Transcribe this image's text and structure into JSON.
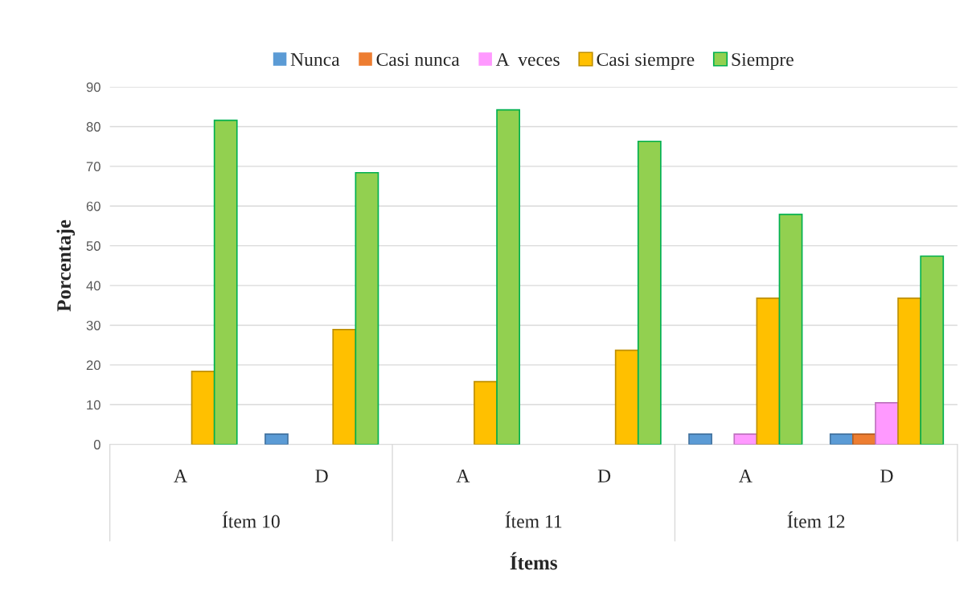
{
  "chart_data": {
    "type": "bar",
    "xlabel": "Ítems",
    "ylabel": "Porcentaje",
    "categories": [
      "A",
      "D",
      "A",
      "D",
      "A",
      "D"
    ],
    "annotations": [
      "Ítem 10",
      "Ítem 11",
      "Ítem 12"
    ],
    "series": [
      {
        "name": "Nunca",
        "color": "#5b9bd5",
        "values": [
          0,
          2.6,
          0,
          0,
          2.6,
          2.6
        ]
      },
      {
        "name": "Casi nunca",
        "color": "#ed7d31",
        "values": [
          0,
          0,
          0,
          0,
          0,
          2.6
        ]
      },
      {
        "name": "A  veces",
        "color": "#ff99ff",
        "values": [
          0,
          0,
          0,
          0,
          2.6,
          10.5
        ]
      },
      {
        "name": "Casi siempre",
        "color": "#ffc000",
        "values": [
          18.4,
          28.9,
          15.8,
          23.7,
          36.8,
          36.8
        ]
      },
      {
        "name": "Siempre",
        "color": "#92d050",
        "values": [
          81.6,
          68.4,
          84.2,
          76.3,
          57.9,
          47.4
        ]
      }
    ],
    "ylim": [
      0,
      90
    ],
    "yticks": [
      0,
      10,
      20,
      30,
      40,
      50,
      60,
      70,
      80,
      90
    ],
    "grid": "y",
    "legend": "top"
  }
}
